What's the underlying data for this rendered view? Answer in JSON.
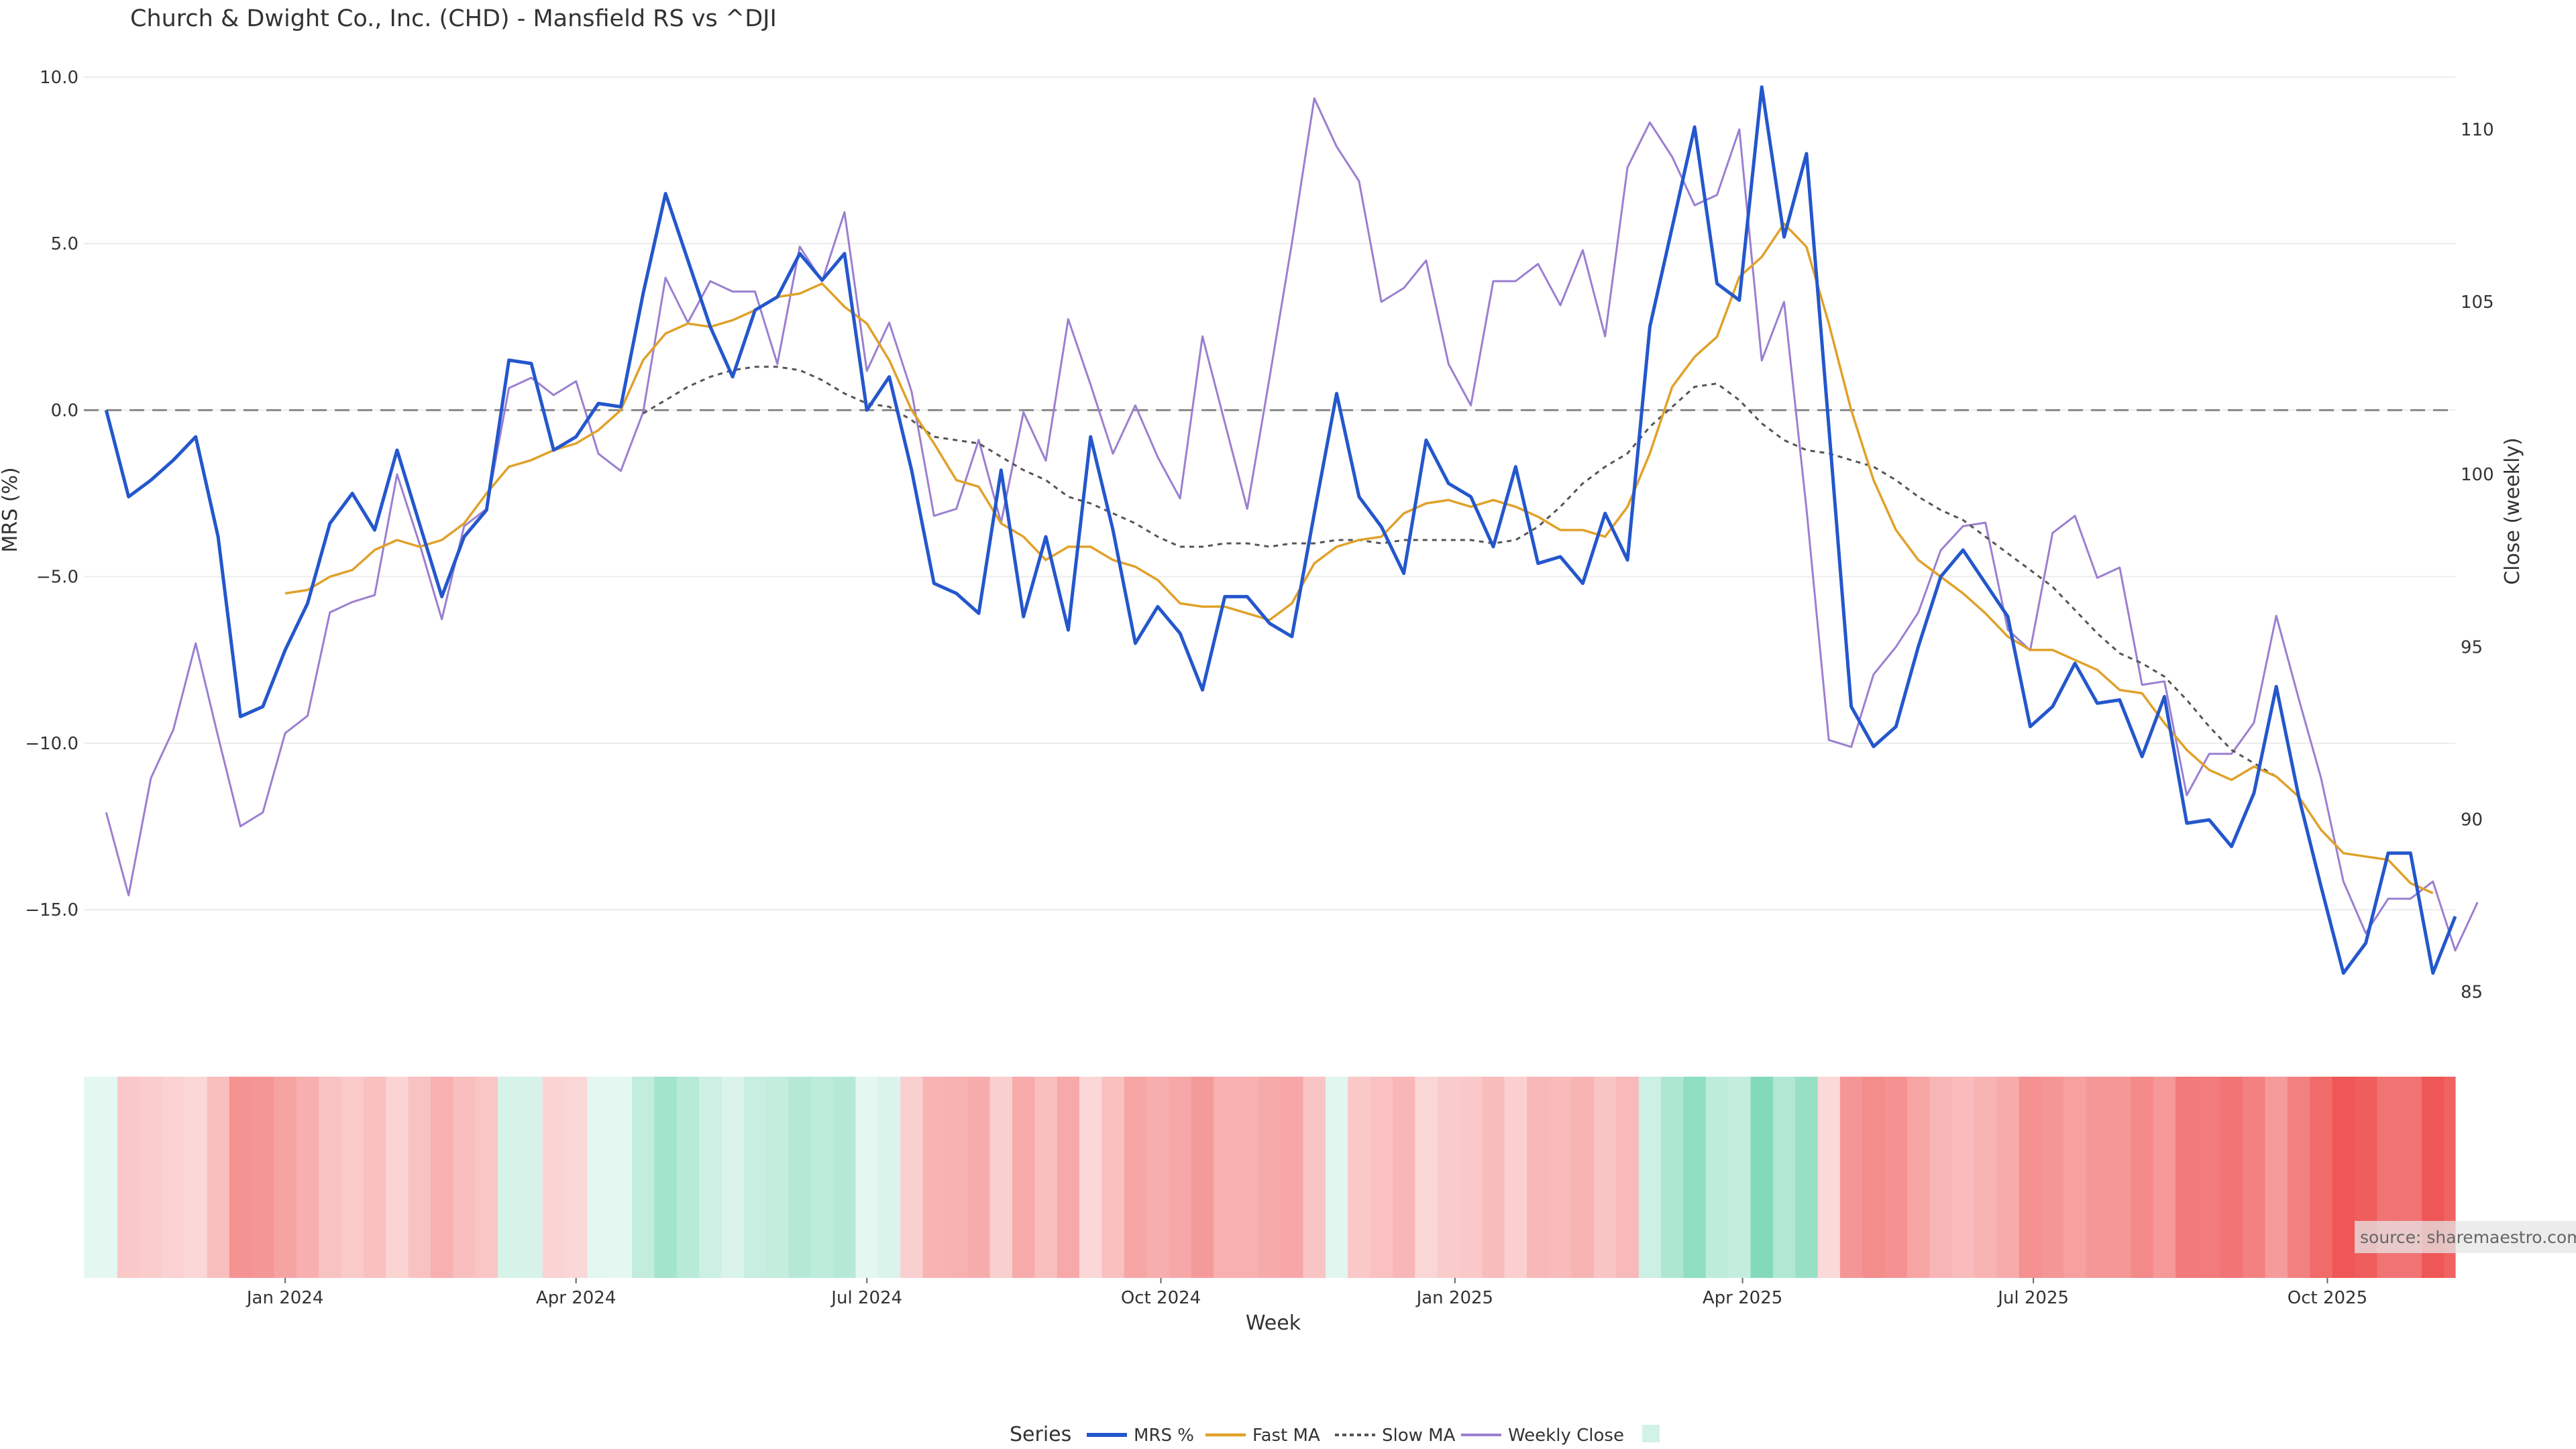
{
  "chart_data": {
    "type": "line",
    "title": "Church & Dwight Co., Inc. (CHD) - Mansfield RS vs ^DJI",
    "xlabel": "Week",
    "ylabel_left": "MRS (%)",
    "ylabel_right": "Close (weekly)",
    "ylim_left": [
      -18.5,
      10.5
    ],
    "ylim_right": [
      84.0,
      112.0
    ],
    "yticks_left": [
      "10.0",
      "5.0",
      "0.0",
      "−5.0",
      "−10.0",
      "−15.0"
    ],
    "ytick_values_left": [
      10,
      5,
      0,
      -5,
      -10,
      -15
    ],
    "yticks_right": [
      "110",
      "105",
      "100",
      "95",
      "90",
      "85"
    ],
    "ytick_values_right": [
      110,
      105,
      100,
      95,
      90,
      85
    ],
    "x_tick_labels": [
      "Jan 2024",
      "Apr 2024",
      "Jul 2024",
      "Oct 2024",
      "Jan 2025",
      "Apr 2025",
      "Jul 2025",
      "Oct 2025"
    ],
    "x_tick_dates": [
      "2024-01-01",
      "2024-04-01",
      "2024-07-01",
      "2024-10-01",
      "2025-01-01",
      "2025-04-01",
      "2025-07-01",
      "2025-10-01"
    ],
    "x_range": [
      "2023-10-30",
      "2025-11-10"
    ],
    "zero_reference_line": 0,
    "grid": true,
    "legend_title": "Series",
    "legend_position": "bottom-center",
    "source_note": "source: sharemaestro.com",
    "colors": {
      "mrs": "#2457cc",
      "fast_ma": "#e0a12a",
      "slow_ma": "#555555",
      "weekly_close": "#9b7fd0",
      "heat_positive": "#7fd9b8",
      "heat_negative": "#ef5555",
      "heat_neutral": "#ffffff"
    },
    "series": [
      {
        "name": "MRS %",
        "start_date": "2023-11-06",
        "values": [
          0.0,
          -2.6,
          -2.1,
          -1.5,
          -0.8,
          -3.8,
          -9.2,
          -8.9,
          -7.2,
          -5.8,
          -3.4,
          -2.5,
          -3.6,
          -1.2,
          -3.4,
          -5.6,
          -3.8,
          -3.0,
          1.5,
          1.4,
          -1.2,
          -0.8,
          0.2,
          0.1,
          3.5,
          6.5,
          4.5,
          2.5,
          1.0,
          3.0,
          3.4,
          4.7,
          3.9,
          4.7,
          0.0,
          1.0,
          -1.8,
          -5.2,
          -5.5,
          -6.1,
          -1.8,
          -6.2,
          -3.8,
          -6.6,
          -0.8,
          -3.6,
          -7.0,
          -5.9,
          -6.7,
          -8.4,
          -5.6,
          -5.6,
          -6.4,
          -6.8,
          -3.1,
          0.5,
          -2.6,
          -3.5,
          -4.9,
          -0.9,
          -2.2,
          -2.6,
          -4.1,
          -1.7,
          -4.6,
          -4.4,
          -5.2,
          -3.1,
          -4.5,
          2.5,
          5.5,
          8.5,
          3.8,
          3.3,
          9.7,
          5.2,
          7.7,
          -0.5,
          -8.9,
          -10.1,
          -9.5,
          -7.1,
          -5.0,
          -4.2,
          -5.2,
          -6.2,
          -9.5,
          -8.9,
          -7.6,
          -8.8,
          -8.7,
          -10.4,
          -8.6,
          -12.4,
          -12.3,
          -13.1,
          -11.5,
          -8.3,
          -11.6,
          -14.3,
          -16.9,
          -16.0,
          -13.3,
          -13.3,
          -16.9,
          -15.2
        ]
      },
      {
        "name": "Fast MA",
        "start_date": "2024-01-01",
        "values": [
          -5.5,
          -5.4,
          -5.0,
          -4.8,
          -4.2,
          -3.9,
          -4.1,
          -3.9,
          -3.4,
          -2.5,
          -1.7,
          -1.5,
          -1.2,
          -1.0,
          -0.6,
          0.0,
          1.5,
          2.3,
          2.6,
          2.5,
          2.7,
          3.0,
          3.4,
          3.5,
          3.8,
          3.1,
          2.6,
          1.5,
          0.0,
          -1.0,
          -2.1,
          -2.3,
          -3.4,
          -3.8,
          -4.5,
          -4.1,
          -4.1,
          -4.5,
          -4.7,
          -5.1,
          -5.8,
          -5.9,
          -5.9,
          -6.1,
          -6.3,
          -5.8,
          -4.6,
          -4.1,
          -3.9,
          -3.8,
          -3.1,
          -2.8,
          -2.7,
          -2.9,
          -2.7,
          -2.9,
          -3.2,
          -3.6,
          -3.6,
          -3.8,
          -2.9,
          -1.3,
          0.7,
          1.6,
          2.2,
          4.0,
          4.6,
          5.6,
          4.9,
          2.6,
          0.0,
          -2.1,
          -3.6,
          -4.5,
          -5.0,
          -5.5,
          -6.1,
          -6.8,
          -7.2,
          -7.2,
          -7.5,
          -7.8,
          -8.4,
          -8.5,
          -9.4,
          -10.2,
          -10.8,
          -11.1,
          -10.7,
          -11.0,
          -11.6,
          -12.6,
          -13.3,
          -13.4,
          -13.5,
          -14.2,
          -14.5
        ]
      },
      {
        "name": "Slow MA",
        "start_date": "2024-04-22",
        "values": [
          -0.1,
          0.3,
          0.7,
          1.0,
          1.2,
          1.3,
          1.3,
          1.2,
          0.9,
          0.5,
          0.2,
          0.1,
          -0.3,
          -0.8,
          -0.9,
          -1.0,
          -1.4,
          -1.8,
          -2.1,
          -2.6,
          -2.8,
          -3.1,
          -3.4,
          -3.8,
          -4.1,
          -4.1,
          -4.0,
          -4.0,
          -4.1,
          -4.0,
          -4.0,
          -3.9,
          -3.9,
          -4.0,
          -3.9,
          -3.9,
          -3.9,
          -3.9,
          -4.0,
          -3.9,
          -3.5,
          -2.9,
          -2.2,
          -1.7,
          -1.3,
          -0.5,
          0.1,
          0.7,
          0.8,
          0.3,
          -0.4,
          -0.9,
          -1.2,
          -1.3,
          -1.5,
          -1.7,
          -2.1,
          -2.6,
          -3.0,
          -3.3,
          -3.8,
          -4.3,
          -4.8,
          -5.3,
          -6.0,
          -6.7,
          -7.3,
          -7.6,
          -8.0,
          -8.7,
          -9.5,
          -10.2,
          -10.6,
          -11.0,
          -11.6
        ]
      },
      {
        "name": "Weekly Close",
        "start_date": "2023-11-06",
        "values": [
          90.2,
          87.8,
          91.2,
          92.6,
          95.1,
          92.4,
          89.8,
          90.2,
          92.5,
          93.0,
          96.0,
          96.3,
          96.5,
          100.0,
          98.0,
          95.8,
          98.5,
          99.0,
          102.5,
          102.8,
          102.3,
          102.7,
          100.6,
          100.1,
          101.8,
          105.7,
          104.4,
          105.6,
          105.3,
          105.3,
          103.2,
          106.6,
          105.6,
          107.6,
          103.0,
          104.4,
          102.4,
          98.8,
          99.0,
          101.0,
          98.6,
          101.8,
          100.4,
          104.5,
          102.6,
          100.6,
          102.0,
          100.5,
          99.3,
          104.0,
          101.5,
          99.0,
          102.8,
          106.7,
          110.9,
          109.5,
          108.5,
          105.0,
          105.4,
          106.2,
          103.2,
          102.0,
          105.6,
          105.6,
          106.1,
          104.9,
          106.5,
          104.0,
          108.9,
          110.2,
          109.2,
          107.8,
          108.1,
          110.0,
          103.3,
          105.0,
          99.0,
          92.3,
          92.1,
          94.2,
          95.0,
          96.0,
          97.8,
          98.5,
          98.6,
          95.5,
          94.9,
          98.3,
          98.8,
          97.0,
          97.3,
          93.9,
          94.0,
          90.7,
          91.9,
          91.9,
          92.8,
          95.9,
          93.5,
          91.2,
          88.2,
          86.7,
          87.7,
          87.7,
          88.2,
          86.2,
          87.6
        ]
      }
    ],
    "heatmap_strip": {
      "description_values_in": "MRS %",
      "values_source": "MRS %"
    }
  }
}
